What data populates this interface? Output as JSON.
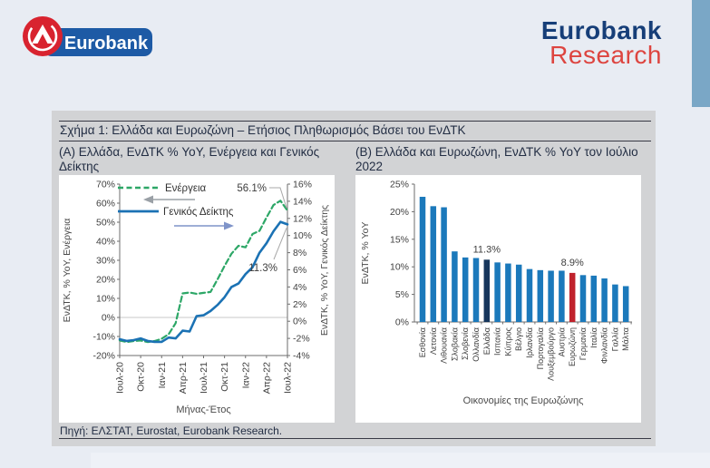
{
  "page": {
    "background": "#e8ecf3",
    "accent_strip_color": "#7aa7c6"
  },
  "header": {
    "logo": {
      "label": "Eurobank",
      "circle_color": "#d8232f",
      "box_color": "#1d5aa5"
    },
    "wordmark": {
      "line1": "Eurobank",
      "line2": "Research",
      "line1_color": "#163e78",
      "line2_color": "#dd4540"
    }
  },
  "figure": {
    "title": "Σχήμα 1: Ελλάδα και Ευρωζώνη – Ετήσιος Πληθωρισμός Βάσει του ΕνΔΤΚ",
    "source": "Πηγή: ΕΛΣΤΑΤ, Eurostat, Eurobank Research."
  },
  "chart_data": [
    {
      "type": "line",
      "title": "(A) Ελλάδα, ΕνΔΤΚ % YoY, Ενέργεια και Γενικός Δείκτης",
      "x": [
        "Ιουλ-20",
        "Αυγ-20",
        "Σεπ-20",
        "Οκτ-20",
        "Νοε-20",
        "Δεκ-20",
        "Ιαν-21",
        "Φεβ-21",
        "Μαρ-21",
        "Απρ-21",
        "Μαϊ-21",
        "Ιουν-21",
        "Ιουλ-21",
        "Αυγ-21",
        "Σεπ-21",
        "Οκτ-21",
        "Νοε-21",
        "Δεκ-21",
        "Ιαν-22",
        "Φεβ-22",
        "Μαρ-22",
        "Απρ-22",
        "Μαϊ-22",
        "Ιουν-22",
        "Ιουλ-22"
      ],
      "x_tick_labels": [
        "Ιουλ-20",
        "Οκτ-20",
        "Ιαν-21",
        "Απρ-21",
        "Ιουλ-21",
        "Οκτ-21",
        "Ιαν-22",
        "Απρ-22",
        "Ιουλ-22"
      ],
      "x_tick_every": 3,
      "xlabel": "Μήνας-Έτος",
      "ylabel_left": "ΕνΔΤΚ, % YoY, Ενέργεια",
      "ylabel_right": "ΕνΔΤΚ, % YoY, Γενικός Δείκτης",
      "ylim_left": [
        -20,
        70
      ],
      "ylim_right": [
        -4,
        16
      ],
      "yticks_left": [
        "70%",
        "60%",
        "50%",
        "40%",
        "30%",
        "20%",
        "10%",
        "0%",
        "-10%",
        "-20%"
      ],
      "yticks_right": [
        "16%",
        "14%",
        "12%",
        "10%",
        "8%",
        "6%",
        "4%",
        "2%",
        "0%",
        "-2%",
        "-4%"
      ],
      "grid": "zero-line-only",
      "legend_position": "top-left-inside",
      "series": [
        {
          "key": "energy",
          "name": "Ενέργεια",
          "axis": "left",
          "style": "dashed",
          "color": "#2da767",
          "values": [
            -12.1,
            -12.9,
            -12.4,
            -12.1,
            -12.9,
            -12.4,
            -11.2,
            -8.8,
            -3.0,
            12.6,
            13.1,
            12.4,
            12.9,
            13.4,
            20.0,
            27.0,
            33.5,
            37.6,
            36.8,
            43.8,
            45.5,
            52.5,
            59.0,
            61.3,
            56.1
          ]
        },
        {
          "key": "general-index",
          "name": "Γενικός Δείκτης",
          "axis": "right",
          "style": "solid",
          "color": "#1b72b4",
          "values": [
            -2.1,
            -2.3,
            -2.2,
            -2.0,
            -2.3,
            -2.4,
            -2.4,
            -1.9,
            -2.0,
            -1.1,
            -1.2,
            0.6,
            0.7,
            1.2,
            1.9,
            2.8,
            4.0,
            4.4,
            5.5,
            6.3,
            8.0,
            9.1,
            10.5,
            11.6,
            11.3
          ]
        }
      ],
      "annotations": [
        {
          "text": "56.1%",
          "series": 0,
          "point": "last"
        },
        {
          "text": "11.3%",
          "series": 1,
          "point": "last"
        }
      ],
      "arrow_left_color": "#9aa0a6",
      "arrow_right_color": "#7f94c9"
    },
    {
      "type": "bar",
      "title": "(B) Ελλάδα και Ευρωζώνη, ΕνΔΤΚ % YoY τον Ιούλιο 2022",
      "categories": [
        "Εσθονία",
        "Λετονία",
        "Λιθουανία",
        "Σλοβακία",
        "Σλοβενία",
        "Ολλανδία",
        "Ελλάδα",
        "Ισπανία",
        "Κύπρος",
        "Βέλγιο",
        "Ιρλανδία",
        "Πορτογαλία",
        "Λουξεμβούργο",
        "Αυστρία",
        "Ευρωζώνη",
        "Γερμανία",
        "Ιταλία",
        "Φινλανδία",
        "Γαλλία",
        "Μάλτα"
      ],
      "values": [
        22.7,
        21.0,
        20.8,
        12.8,
        11.7,
        11.6,
        11.3,
        10.8,
        10.6,
        10.4,
        9.6,
        9.4,
        9.3,
        9.3,
        8.9,
        8.5,
        8.4,
        7.9,
        6.8,
        6.5
      ],
      "bar_color": "#1b79bb",
      "highlights": [
        {
          "index": 6,
          "key": "greece",
          "color": "#16365c",
          "label": "11.3%"
        },
        {
          "index": 14,
          "key": "eurozone",
          "color": "#c0222c",
          "label": "8.9%"
        }
      ],
      "xlabel": "Οικονομίες της Ευρωζώνης",
      "ylabel": "ΕνΔΤΚ, % YoY",
      "ylim": [
        0,
        25
      ],
      "yticks": [
        "0%",
        "5%",
        "10%",
        "15%",
        "20%",
        "25%"
      ],
      "grid": "off"
    }
  ]
}
